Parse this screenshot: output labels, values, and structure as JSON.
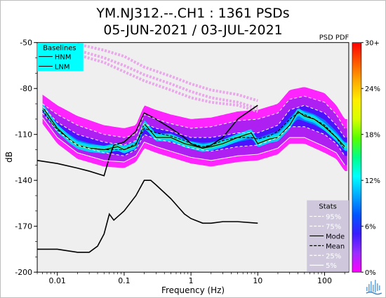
{
  "chart_data": {
    "type": "heatmap",
    "subtype": "probability-density-function",
    "title": "YM.NJ312.--.CH1 : 1361 PSDs",
    "subtitle": "05-JUN-2021 / 03-JUL-2021",
    "xlabel": "Frequency (Hz)",
    "ylabel": "dB",
    "x_scale": "log",
    "xlim": [
      0.005,
      230
    ],
    "ylim": [
      -200,
      -50
    ],
    "x_tick_labels": [
      "0.01",
      "0.1",
      "1",
      "10",
      "100"
    ],
    "x_tick_values": [
      0.01,
      0.1,
      1,
      10,
      100
    ],
    "y_tick_labels": [
      "-50",
      "-80",
      "-110",
      "-140",
      "-170",
      "-200"
    ],
    "y_tick_values": [
      -50,
      -80,
      -110,
      -140,
      -170,
      -200
    ],
    "colorbar": {
      "label": "PSD PDF",
      "tick_labels": [
        "30+",
        "24%",
        "18%",
        "12%",
        "6%",
        "0%"
      ],
      "tick_values": [
        30,
        24,
        18,
        12,
        6,
        0
      ],
      "colors": [
        "#ff00ff",
        "#9a2cff",
        "#3a1cff",
        "#0055ff",
        "#00a8ff",
        "#00ffff",
        "#00ff88",
        "#55ff00",
        "#d8ff00",
        "#ffee00",
        "#ffaa00",
        "#ff5500",
        "#ff0000"
      ]
    },
    "background_color": "#efefef",
    "baselines_legend": {
      "title": "Baselines",
      "items": [
        "HNM",
        "LNM"
      ],
      "background": "#00ffff"
    },
    "stats_legend": {
      "title": "Stats",
      "items": [
        {
          "label": "95%",
          "style": "dashed",
          "color": "#ffffff"
        },
        {
          "label": "75%",
          "style": "dashed",
          "color": "#ffffff"
        },
        {
          "label": "Mode",
          "style": "solid",
          "color": "#000000"
        },
        {
          "label": "Mean",
          "style": "dashed",
          "color": "#000000"
        },
        {
          "label": "25%",
          "style": "dashed",
          "color": "#ffffff"
        },
        {
          "label": "5%",
          "style": "solid",
          "color": "#ffffff"
        }
      ],
      "background": "#cfc8dc"
    },
    "series": [
      {
        "name": "HNM",
        "color": "#000000",
        "x": [
          0.005,
          0.01,
          0.02,
          0.03,
          0.05,
          0.06,
          0.07,
          0.1,
          0.15,
          0.2,
          0.3,
          0.5,
          0.8,
          1,
          1.5,
          2,
          3,
          5,
          10
        ],
        "y": [
          -127,
          -129,
          -132,
          -134,
          -137,
          -125,
          -117,
          -115,
          -108,
          -96,
          -100,
          -106,
          -112,
          -116,
          -119,
          -117,
          -112,
          -100,
          -91
        ]
      },
      {
        "name": "LNM",
        "color": "#000000",
        "x": [
          0.005,
          0.01,
          0.02,
          0.03,
          0.04,
          0.05,
          0.06,
          0.07,
          0.1,
          0.15,
          0.2,
          0.25,
          0.3,
          0.5,
          0.8,
          1,
          1.5,
          2,
          3,
          5,
          10
        ],
        "y": [
          -185,
          -185,
          -187,
          -187,
          -183,
          -175,
          -162,
          -166,
          -160,
          -150,
          -140,
          -140,
          -143,
          -152,
          -162,
          -165,
          -168,
          -168,
          -167,
          -167,
          -168
        ]
      },
      {
        "name": "Mode",
        "color": "#000000",
        "x": [
          0.006,
          0.008,
          0.01,
          0.015,
          0.02,
          0.03,
          0.05,
          0.08,
          0.1,
          0.15,
          0.2,
          0.3,
          0.5,
          0.8,
          1,
          1.5,
          2,
          3,
          5,
          8,
          10,
          15,
          20,
          30,
          40,
          50,
          70,
          100,
          150,
          200
        ],
        "y": [
          -92,
          -100,
          -106,
          -113,
          -117,
          -119,
          -120,
          -118,
          -120,
          -117,
          -103,
          -112,
          -112,
          -116,
          -117,
          -119,
          -118,
          -116,
          -112,
          -109,
          -116,
          -113,
          -112,
          -104,
          -95,
          -98,
          -100,
          -105,
          -112,
          -118
        ]
      },
      {
        "name": "Mean",
        "color": "#000000",
        "x": [
          0.006,
          0.008,
          0.01,
          0.015,
          0.02,
          0.03,
          0.05,
          0.08,
          0.1,
          0.15,
          0.2,
          0.3,
          0.5,
          0.8,
          1,
          1.5,
          2,
          3,
          5,
          8,
          10,
          15,
          20,
          30,
          40,
          50,
          70,
          100,
          150,
          200
        ],
        "y": [
          -94,
          -102,
          -107,
          -113,
          -117,
          -119,
          -120,
          -120,
          -120,
          -116,
          -106,
          -109,
          -111,
          -114,
          -116,
          -118,
          -117,
          -114,
          -112,
          -112,
          -113,
          -111,
          -108,
          -100,
          -96,
          -97,
          -100,
          -104,
          -112,
          -120
        ]
      },
      {
        "name": "95%",
        "color": "#ffffff",
        "x": [
          0.006,
          0.01,
          0.02,
          0.05,
          0.1,
          0.15,
          0.2,
          0.3,
          0.5,
          1,
          2,
          5,
          10,
          20,
          30,
          50,
          100,
          150,
          200
        ],
        "y": [
          -90,
          -97,
          -104,
          -110,
          -112,
          -110,
          -97,
          -100,
          -103,
          -106,
          -105,
          -101,
          -100,
          -96,
          -87,
          -85,
          -89,
          -97,
          -106
        ]
      },
      {
        "name": "75%",
        "color": "#ffffff",
        "x": [
          0.006,
          0.01,
          0.02,
          0.05,
          0.1,
          0.15,
          0.2,
          0.3,
          0.5,
          1,
          2,
          5,
          10,
          20,
          30,
          50,
          100,
          150,
          200
        ],
        "y": [
          -92,
          -102,
          -110,
          -115,
          -117,
          -114,
          -103,
          -106,
          -108,
          -112,
          -112,
          -109,
          -109,
          -104,
          -94,
          -91,
          -96,
          -104,
          -112
        ]
      },
      {
        "name": "25%",
        "color": "#ffffff",
        "x": [
          0.006,
          0.01,
          0.02,
          0.05,
          0.1,
          0.15,
          0.2,
          0.3,
          0.5,
          1,
          2,
          5,
          10,
          20,
          30,
          50,
          100,
          150,
          200
        ],
        "y": [
          -96,
          -108,
          -117,
          -122,
          -124,
          -120,
          -110,
          -113,
          -115,
          -119,
          -121,
          -118,
          -117,
          -112,
          -105,
          -105,
          -110,
          -116,
          -124
        ]
      },
      {
        "name": "5%",
        "color": "#ffffff",
        "x": [
          0.006,
          0.01,
          0.02,
          0.05,
          0.1,
          0.15,
          0.2,
          0.3,
          0.5,
          1,
          2,
          5,
          10,
          20,
          30,
          50,
          100,
          150,
          200
        ],
        "y": [
          -99,
          -112,
          -122,
          -127,
          -128,
          -124,
          -115,
          -118,
          -121,
          -125,
          -127,
          -124,
          -123,
          -119,
          -112,
          -112,
          -118,
          -122,
          -130
        ]
      }
    ],
    "outlier_series": [
      {
        "x": [
          0.02,
          0.05,
          0.1,
          0.2,
          0.5,
          1,
          2,
          5,
          10
        ],
        "y": [
          -51,
          -55,
          -59,
          -66,
          -72,
          -77,
          -81,
          -84,
          -88
        ]
      },
      {
        "x": [
          0.02,
          0.05,
          0.1,
          0.2,
          0.5,
          1,
          2,
          5,
          10
        ],
        "y": [
          -55,
          -60,
          -65,
          -71,
          -77,
          -82,
          -86,
          -89,
          -93
        ]
      },
      {
        "x": [
          0.02,
          0.05,
          0.1,
          0.2,
          0.5,
          1,
          2,
          5,
          10
        ],
        "y": [
          -58,
          -63,
          -69,
          -75,
          -81,
          -86,
          -89,
          -91,
          -95
        ]
      }
    ]
  }
}
